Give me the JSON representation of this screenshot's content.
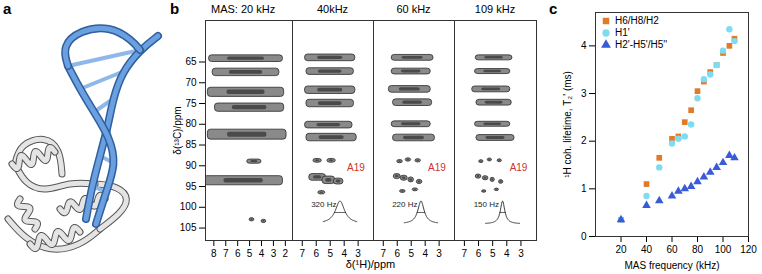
{
  "panel_labels": [
    "a",
    "b",
    "c"
  ],
  "spectra": {
    "ylabel": "δ(¹³C)/ppm",
    "xlabel": "δ(¹H)/ppm",
    "ylim": [
      55,
      108
    ],
    "yticks": [
      65,
      70,
      75,
      80,
      85,
      90,
      95,
      100,
      105
    ],
    "panels": [
      {
        "title": "MAS: 20 kHz",
        "xlim": [
          8.7,
          1.4
        ],
        "xticks": [
          8,
          7,
          6,
          5,
          4,
          3,
          2
        ],
        "peaks": [
          {
            "h": 5.3,
            "c": 64.2,
            "wh": 6.2,
            "wc": 1.6
          },
          {
            "h": 5.3,
            "c": 67.5,
            "wh": 5.6,
            "wc": 1.8
          },
          {
            "h": 5.3,
            "c": 72.3,
            "wh": 6.4,
            "wc": 2.2
          },
          {
            "h": 5.0,
            "c": 76.0,
            "wh": 5.8,
            "wc": 2.0
          },
          {
            "h": 5.2,
            "c": 82.5,
            "wh": 6.6,
            "wc": 2.4
          },
          {
            "h": 4.6,
            "c": 89.0,
            "wh": 1.2,
            "wc": 1.0
          },
          {
            "h": 5.5,
            "c": 93.6,
            "wh": 6.6,
            "wc": 2.2
          },
          {
            "h": 4.8,
            "c": 103.0,
            "wh": 0.4,
            "wc": 0.8
          },
          {
            "h": 3.8,
            "c": 103.4,
            "wh": 0.4,
            "wc": 0.8
          }
        ]
      },
      {
        "title": "40kHz",
        "xlim": [
          7.7,
          1.9
        ],
        "xticks": [
          7,
          6,
          5,
          4,
          3
        ],
        "peaks": [
          {
            "h": 5.0,
            "c": 64.0,
            "wh": 3.6,
            "wc": 1.6
          },
          {
            "h": 5.0,
            "c": 67.3,
            "wh": 3.4,
            "wc": 1.6
          },
          {
            "h": 5.0,
            "c": 71.8,
            "wh": 3.6,
            "wc": 1.8
          },
          {
            "h": 5.0,
            "c": 75.0,
            "wh": 3.4,
            "wc": 1.8
          },
          {
            "h": 5.1,
            "c": 80.2,
            "wh": 3.4,
            "wc": 1.6
          },
          {
            "h": 4.9,
            "c": 83.2,
            "wh": 3.6,
            "wc": 1.8
          },
          {
            "h": 5.9,
            "c": 88.8,
            "wh": 0.6,
            "wc": 0.9
          },
          {
            "h": 4.9,
            "c": 88.8,
            "wh": 0.6,
            "wc": 0.9
          },
          {
            "h": 5.9,
            "c": 92.8,
            "wh": 1.2,
            "wc": 1.6
          },
          {
            "h": 5.1,
            "c": 93.5,
            "wh": 0.9,
            "wc": 1.8
          },
          {
            "h": 4.4,
            "c": 93.8,
            "wh": 0.7,
            "wc": 1.4
          },
          {
            "h": 5.6,
            "c": 96.5,
            "wh": 0.5,
            "wc": 0.8
          }
        ],
        "annotation": {
          "text": "A19",
          "h": 3.8,
          "c": 90.5
        },
        "linewidth": {
          "value": 320,
          "label": "320 Hz"
        }
      },
      {
        "title": "60 kHz",
        "xlim": [
          7.7,
          1.9
        ],
        "xticks": [
          7,
          6,
          5,
          4,
          3
        ],
        "peaks": [
          {
            "h": 4.9,
            "c": 64.0,
            "wh": 3.0,
            "wc": 1.4
          },
          {
            "h": 5.0,
            "c": 67.3,
            "wh": 2.8,
            "wc": 1.4
          },
          {
            "h": 5.1,
            "c": 71.6,
            "wh": 3.0,
            "wc": 1.6
          },
          {
            "h": 4.9,
            "c": 74.8,
            "wh": 2.8,
            "wc": 1.6
          },
          {
            "h": 5.0,
            "c": 80.0,
            "wh": 2.8,
            "wc": 1.4
          },
          {
            "h": 4.8,
            "c": 83.3,
            "wh": 3.0,
            "wc": 1.6
          },
          {
            "h": 5.8,
            "c": 89.0,
            "wh": 0.4,
            "wc": 0.8
          },
          {
            "h": 5.2,
            "c": 88.6,
            "wh": 0.4,
            "wc": 0.8
          },
          {
            "h": 4.5,
            "c": 88.8,
            "wh": 0.4,
            "wc": 0.8
          },
          {
            "h": 6.0,
            "c": 92.6,
            "wh": 0.5,
            "wc": 1.2
          },
          {
            "h": 5.5,
            "c": 93.0,
            "wh": 0.5,
            "wc": 1.2
          },
          {
            "h": 5.0,
            "c": 93.4,
            "wh": 0.4,
            "wc": 1.2
          },
          {
            "h": 4.4,
            "c": 93.9,
            "wh": 0.4,
            "wc": 1.0
          },
          {
            "h": 5.6,
            "c": 96.2,
            "wh": 0.4,
            "wc": 0.7
          },
          {
            "h": 4.7,
            "c": 95.8,
            "wh": 0.4,
            "wc": 0.7
          }
        ],
        "annotation": {
          "text": "A19",
          "h": 3.8,
          "c": 90.5
        },
        "linewidth": {
          "value": 220,
          "label": "220 Hz"
        }
      },
      {
        "title": "109 kHz",
        "xlim": [
          7.7,
          1.9
        ],
        "xticks": [
          7,
          6,
          5,
          4,
          3
        ],
        "peaks": [
          {
            "h": 4.9,
            "c": 64.0,
            "wh": 2.6,
            "wc": 1.2
          },
          {
            "h": 5.0,
            "c": 67.3,
            "wh": 2.5,
            "wc": 1.2
          },
          {
            "h": 5.1,
            "c": 71.6,
            "wh": 2.7,
            "wc": 1.4
          },
          {
            "h": 4.9,
            "c": 74.8,
            "wh": 2.5,
            "wc": 1.4
          },
          {
            "h": 5.0,
            "c": 80.0,
            "wh": 2.5,
            "wc": 1.2
          },
          {
            "h": 4.8,
            "c": 83.3,
            "wh": 2.7,
            "wc": 1.4
          },
          {
            "h": 5.8,
            "c": 89.0,
            "wh": 0.3,
            "wc": 0.7
          },
          {
            "h": 5.2,
            "c": 88.6,
            "wh": 0.3,
            "wc": 0.7
          },
          {
            "h": 4.5,
            "c": 88.8,
            "wh": 0.3,
            "wc": 0.7
          },
          {
            "h": 6.0,
            "c": 92.6,
            "wh": 0.4,
            "wc": 1.0
          },
          {
            "h": 5.5,
            "c": 93.0,
            "wh": 0.4,
            "wc": 1.0
          },
          {
            "h": 5.0,
            "c": 93.4,
            "wh": 0.3,
            "wc": 1.0
          },
          {
            "h": 4.4,
            "c": 93.9,
            "wh": 0.3,
            "wc": 0.9
          },
          {
            "h": 5.6,
            "c": 96.2,
            "wh": 0.3,
            "wc": 0.6
          },
          {
            "h": 4.7,
            "c": 95.8,
            "wh": 0.3,
            "wc": 0.6
          }
        ],
        "annotation": {
          "text": "A19",
          "h": 3.8,
          "c": 90.5
        },
        "linewidth": {
          "value": 150,
          "label": "150 Hz"
        }
      }
    ]
  },
  "chart_data": {
    "type": "scatter",
    "xlabel": "MAS frequency (kHz)",
    "ylabel": "¹H coh. lifetime, T₂' (ms)",
    "x": [
      20,
      40,
      50,
      60,
      65,
      70,
      75,
      80,
      85,
      90,
      95,
      100,
      105,
      109
    ],
    "series": [
      {
        "name": "H6/H8/H2",
        "color": "#e07b28",
        "marker": "square",
        "values": [
          0.35,
          1.1,
          1.65,
          2.05,
          2.1,
          2.4,
          2.65,
          3.05,
          3.25,
          3.45,
          3.6,
          3.85,
          4.0,
          4.15
        ]
      },
      {
        "name": "H1'",
        "color": "#7fdcf0",
        "marker": "circle",
        "values": [
          0.35,
          0.85,
          1.45,
          1.95,
          2.05,
          2.1,
          2.35,
          2.9,
          3.3,
          3.4,
          3.6,
          3.9,
          4.35,
          4.1
        ]
      },
      {
        "name": "H2'-H5'/H5''",
        "color": "#3a5bd9",
        "marker": "triangle",
        "values": [
          0.35,
          0.65,
          0.75,
          0.85,
          0.95,
          1.0,
          1.05,
          1.15,
          1.25,
          1.35,
          1.45,
          1.55,
          1.7,
          1.65
        ]
      }
    ],
    "xlim": [
      0,
      120
    ],
    "xticks": [
      20,
      40,
      60,
      80,
      100,
      120
    ],
    "ylim": [
      0,
      4.7
    ],
    "yticks": [
      0,
      1,
      2,
      3,
      4
    ],
    "legend": "top-left",
    "grid": false
  }
}
